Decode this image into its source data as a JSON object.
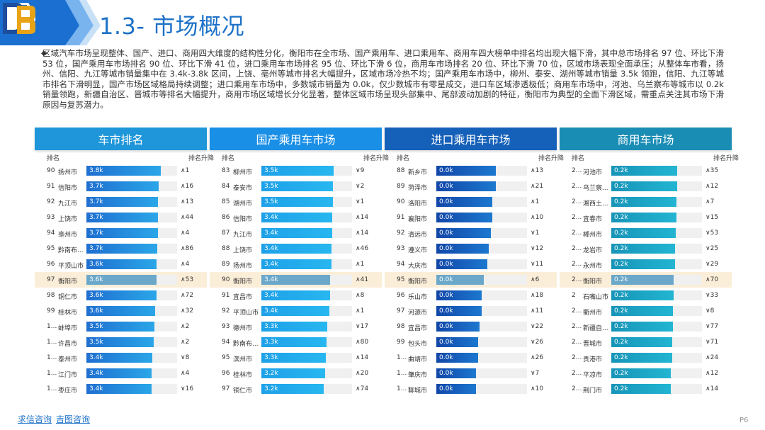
{
  "header": {
    "title": "1.3- 市场概况"
  },
  "summary": "区域汽车市场呈现整体、国产、进口、商用四大维度的结构性分化，衡阳市在全市场、国产乘用车、进口乘用车、商用车四大榜单中排名均出现大幅下滑，其中总市场排名 97 位、环比下滑 53 位，国产乘用车市场排名 90 位、环比下滑 41 位，进口乘用车市场排名 95 位、环比下滑 6 位，商用车市场排名 20 位、环比下滑 70 位，区域市场表现全面承压；从整体车市看，扬州、信阳、九江等城市销量集中在 3.4k-3.8k 区间，上饶、亳州等城市排名大幅提升，区域市场冷热不均；国产乘用车市场中，柳州、泰安、湖州等城市销量 3.5k 领跑，信阳、九江等城市排名下滑明显，国产市场区域格局持续调整；进口乘用车市场中，多数城市销量为 0.0k，仅少数城市有零星成交，进口车区域渗透极低；商用车市场中，河池、乌兰察布等城市以 0.2k 销量领跑，新疆自治区、晋城市等排名大幅提升，商用市场区域增长分化显著，整体区域市场呈现头部集中、尾部波动加剧的特征，衡阳市为典型的全面下滑区域，需重点关注其市场下滑原因与复苏潜力。",
  "columns": {
    "rank": "排名",
    "change": "排名升降"
  },
  "colors": {
    "panel1": "#1e96d9",
    "panel2": "#1a8fe6",
    "panel3": "#1560b8",
    "panel4": "#1a8db5",
    "highlight": "#fbeed8"
  },
  "panels": [
    {
      "title": "车市排名",
      "rows": [
        {
          "rank": "90",
          "city": "扬州市",
          "label": "3.8k",
          "value": 3.8,
          "change": "∧1"
        },
        {
          "rank": "91",
          "city": "信阳市",
          "label": "3.7k",
          "value": 3.7,
          "change": "∧16"
        },
        {
          "rank": "92",
          "city": "九江市",
          "label": "3.7k",
          "value": 3.7,
          "change": "∧13"
        },
        {
          "rank": "93",
          "city": "上饶市",
          "label": "3.7k",
          "value": 3.7,
          "change": "∧44"
        },
        {
          "rank": "94",
          "city": "亳州市",
          "label": "3.7k",
          "value": 3.7,
          "change": "∧4"
        },
        {
          "rank": "95",
          "city": "黔南布...",
          "label": "3.7k",
          "value": 3.7,
          "change": "∧86"
        },
        {
          "rank": "96",
          "city": "平顶山市",
          "label": "3.6k",
          "value": 3.6,
          "change": "∧4"
        },
        {
          "rank": "97",
          "city": "衡阳市",
          "label": "3.6k",
          "value": 3.6,
          "change": "∧53",
          "highlight": true
        },
        {
          "rank": "98",
          "city": "铜仁市",
          "label": "3.6k",
          "value": 3.6,
          "change": "∧72"
        },
        {
          "rank": "99",
          "city": "桂林市",
          "label": "3.6k",
          "value": 3.6,
          "change": "∧32"
        },
        {
          "rank": "1...",
          "city": "蚌埠市",
          "label": "3.5k",
          "value": 3.5,
          "change": "∧2"
        },
        {
          "rank": "1...",
          "city": "许昌市",
          "label": "3.5k",
          "value": 3.5,
          "change": "∧2"
        },
        {
          "rank": "1...",
          "city": "泰州市",
          "label": "3.4k",
          "value": 3.4,
          "change": "∨8"
        },
        {
          "rank": "1...",
          "city": "江门市",
          "label": "3.4k",
          "value": 3.4,
          "change": "∧4"
        },
        {
          "rank": "1...",
          "city": "枣庄市",
          "label": "3.4k",
          "value": 3.4,
          "change": "∨16"
        }
      ]
    },
    {
      "title": "国产乘用车市场",
      "rows": [
        {
          "rank": "83",
          "city": "柳州市",
          "label": "3.5k",
          "value": 3.5,
          "change": "∨9"
        },
        {
          "rank": "84",
          "city": "泰安市",
          "label": "3.5k",
          "value": 3.5,
          "change": "∨2"
        },
        {
          "rank": "85",
          "city": "湖州市",
          "label": "3.5k",
          "value": 3.5,
          "change": "∨1"
        },
        {
          "rank": "86",
          "city": "信阳市",
          "label": "3.4k",
          "value": 3.4,
          "change": "∧14"
        },
        {
          "rank": "87",
          "city": "九江市",
          "label": "3.4k",
          "value": 3.4,
          "change": "∧14"
        },
        {
          "rank": "88",
          "city": "上饶市",
          "label": "3.4k",
          "value": 3.4,
          "change": "∧46"
        },
        {
          "rank": "89",
          "city": "扬州市",
          "label": "3.4k",
          "value": 3.4,
          "change": "∧1"
        },
        {
          "rank": "90",
          "city": "衡阳市",
          "label": "3.4k",
          "value": 3.4,
          "change": "∧41",
          "highlight": true
        },
        {
          "rank": "91",
          "city": "宜昌市",
          "label": "3.4k",
          "value": 3.4,
          "change": "∧8"
        },
        {
          "rank": "92",
          "city": "平顶山市",
          "label": "3.4k",
          "value": 3.4,
          "change": "∧1"
        },
        {
          "rank": "93",
          "city": "德州市",
          "label": "3.3k",
          "value": 3.3,
          "change": "∨17"
        },
        {
          "rank": "94",
          "city": "黔南布...",
          "label": "3.3k",
          "value": 3.3,
          "change": "∧80"
        },
        {
          "rank": "95",
          "city": "滨州市",
          "label": "3.3k",
          "value": 3.3,
          "change": "∧14"
        },
        {
          "rank": "96",
          "city": "桂林市",
          "label": "3.2k",
          "value": 3.2,
          "change": "∧20"
        },
        {
          "rank": "97",
          "city": "铜仁市",
          "label": "3.2k",
          "value": 3.2,
          "change": "∧74"
        }
      ]
    },
    {
      "title": "进口乘用车市场",
      "rows": [
        {
          "rank": "88",
          "city": "新乡市",
          "label": "0.0k",
          "value": 0.0,
          "change": "∧13"
        },
        {
          "rank": "89",
          "city": "菏泽市",
          "label": "0.0k",
          "value": 0.0,
          "change": "∧21"
        },
        {
          "rank": "90",
          "city": "洛阳市",
          "label": "0.0k",
          "value": 0.0,
          "change": "∧1"
        },
        {
          "rank": "91",
          "city": "襄阳市",
          "label": "0.0k",
          "value": 0.0,
          "change": "∧10"
        },
        {
          "rank": "92",
          "city": "清远市",
          "label": "0.0k",
          "value": 0.0,
          "change": "∨1"
        },
        {
          "rank": "93",
          "city": "遵义市",
          "label": "0.0k",
          "value": 0.0,
          "change": "∨12"
        },
        {
          "rank": "94",
          "city": "大庆市",
          "label": "0.0k",
          "value": 0.0,
          "change": "∨11"
        },
        {
          "rank": "95",
          "city": "衡阳市",
          "label": "0.0k",
          "value": 0.0,
          "change": "∧6",
          "highlight": true
        },
        {
          "rank": "96",
          "city": "乐山市",
          "label": "0.0k",
          "value": 0.0,
          "change": "∧18"
        },
        {
          "rank": "97",
          "city": "河源市",
          "label": "0.0k",
          "value": 0.0,
          "change": "∧11"
        },
        {
          "rank": "98",
          "city": "宜昌市",
          "label": "0.0k",
          "value": 0.0,
          "change": "∨22"
        },
        {
          "rank": "99",
          "city": "包头市",
          "label": "0.0k",
          "value": 0.0,
          "change": "∨26"
        },
        {
          "rank": "1...",
          "city": "曲靖市",
          "label": "0.0k",
          "value": 0.0,
          "change": "∧26"
        },
        {
          "rank": "1...",
          "city": "肇庆市",
          "label": "0.0k",
          "value": 0.0,
          "change": "∨7"
        },
        {
          "rank": "1...",
          "city": "聊城市",
          "label": "0.0k",
          "value": 0.0,
          "change": "∧10"
        }
      ]
    },
    {
      "title": "商用车市场",
      "rows": [
        {
          "rank": "2...",
          "city": "河池市",
          "label": "0.2k",
          "value": 0.2,
          "change": "∧35"
        },
        {
          "rank": "2...",
          "city": "乌兰察...",
          "label": "0.2k",
          "value": 0.2,
          "change": "∧12"
        },
        {
          "rank": "2...",
          "city": "湘西土...",
          "label": "0.2k",
          "value": 0.2,
          "change": "∧7"
        },
        {
          "rank": "2...",
          "city": "宜春市",
          "label": "0.2k",
          "value": 0.2,
          "change": "∨15"
        },
        {
          "rank": "2...",
          "city": "郴州市",
          "label": "0.2k",
          "value": 0.2,
          "change": "∨53"
        },
        {
          "rank": "2...",
          "city": "龙岩市",
          "label": "0.2k",
          "value": 0.2,
          "change": "∨25"
        },
        {
          "rank": "2...",
          "city": "永州市",
          "label": "0.2k",
          "value": 0.2,
          "change": "∨29"
        },
        {
          "rank": "2...",
          "city": "衡阳市",
          "label": "0.2k",
          "value": 0.2,
          "change": "∧70",
          "highlight": true
        },
        {
          "rank": "2",
          "city": "石嘴山市",
          "label": "0.2k",
          "value": 0.2,
          "change": "∨33"
        },
        {
          "rank": "2...",
          "city": "衢州市",
          "label": "0.2k",
          "value": 0.2,
          "change": "∨8"
        },
        {
          "rank": "2...",
          "city": "新疆自...",
          "label": "0.2k",
          "value": 0.2,
          "change": "∨77"
        },
        {
          "rank": "2...",
          "city": "晋城市",
          "label": "0.2k",
          "value": 0.2,
          "change": "∨71"
        },
        {
          "rank": "2...",
          "city": "贵港市",
          "label": "0.2k",
          "value": 0.2,
          "change": "∧24"
        },
        {
          "rank": "2...",
          "city": "平凉市",
          "label": "0.2k",
          "value": 0.2,
          "change": "∧12"
        },
        {
          "rank": "2...",
          "city": "荆门市",
          "label": "0.2k",
          "value": 0.2,
          "change": "∧14"
        }
      ]
    }
  ],
  "footer": {
    "link1": "求信咨询",
    "link2": "吉图咨询",
    "page": "P6"
  }
}
